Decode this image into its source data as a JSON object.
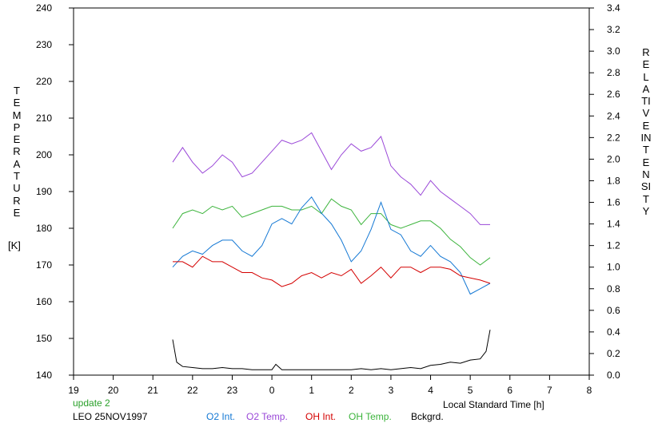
{
  "header": {
    "update_text": "update 2",
    "station_text": "LEO 25NOV1997"
  },
  "axes": {
    "left_label": "TEMPERATURE",
    "left_unit": "[K]",
    "right_label": "RELATIVE INTENSITY",
    "x_label": "Local Standard Time [h]"
  },
  "colors": {
    "o2_int": "#1478d4",
    "o2_temp": "#9a48d8",
    "oh_int": "#d40000",
    "oh_temp": "#3cb43c",
    "bckgrd": "#000000",
    "update": "#2aa02a"
  },
  "chart_data": {
    "type": "line",
    "title": "",
    "xlabel": "Local Standard Time [h]",
    "ylabel": "TEMPERATURE [K]",
    "ylabel_right": "RELATIVE INTENSITY",
    "xlim": [
      19,
      32
    ],
    "ylim": [
      140,
      240
    ],
    "ylim_right": [
      0.0,
      3.4
    ],
    "x_tick_labels": [
      "19",
      "20",
      "21",
      "22",
      "23",
      "0",
      "1",
      "2",
      "3",
      "4",
      "5",
      "6",
      "7",
      "8"
    ],
    "y_tick_labels": [
      "140",
      "150",
      "160",
      "170",
      "180",
      "190",
      "200",
      "210",
      "220",
      "230",
      "240"
    ],
    "y_right_tick_labels": [
      "0.0",
      "0.2",
      "0.4",
      "0.6",
      "0.8",
      "1.0",
      "1.2",
      "1.4",
      "1.6",
      "1.8",
      "2.0",
      "2.2",
      "2.4",
      "2.6",
      "2.8",
      "3.0",
      "3.2",
      "3.4"
    ],
    "grid": false,
    "legend_position": "bottom",
    "series": [
      {
        "name": "O2 Int.",
        "axis": "right",
        "x": [
          21.5,
          21.75,
          22.0,
          22.25,
          22.5,
          22.75,
          23.0,
          23.25,
          23.5,
          23.75,
          24.0,
          24.25,
          24.5,
          24.75,
          25.0,
          25.25,
          25.5,
          25.75,
          26.0,
          26.25,
          26.5,
          26.75,
          27.0,
          27.25,
          27.5,
          27.75,
          28.0,
          28.25,
          28.5,
          28.75,
          29.0,
          29.25,
          29.5
        ],
        "y": [
          1.0,
          1.1,
          1.15,
          1.12,
          1.2,
          1.25,
          1.25,
          1.15,
          1.1,
          1.2,
          1.4,
          1.45,
          1.4,
          1.55,
          1.65,
          1.5,
          1.4,
          1.25,
          1.05,
          1.15,
          1.35,
          1.6,
          1.35,
          1.3,
          1.15,
          1.1,
          1.2,
          1.1,
          1.05,
          0.95,
          0.75,
          0.8,
          0.85
        ]
      },
      {
        "name": "O2 Temp.",
        "axis": "left",
        "x": [
          21.5,
          21.75,
          22.0,
          22.25,
          22.5,
          22.75,
          23.0,
          23.25,
          23.5,
          23.75,
          24.0,
          24.25,
          24.5,
          24.75,
          25.0,
          25.25,
          25.5,
          25.75,
          26.0,
          26.25,
          26.5,
          26.75,
          27.0,
          27.25,
          27.5,
          27.75,
          28.0,
          28.25,
          28.5,
          28.75,
          29.0,
          29.25,
          29.5
        ],
        "y": [
          198,
          202,
          198,
          195,
          197,
          200,
          198,
          194,
          195,
          198,
          201,
          204,
          203,
          204,
          206,
          201,
          196,
          200,
          203,
          201,
          202,
          205,
          197,
          194,
          192,
          189,
          193,
          190,
          188,
          186,
          184,
          181,
          181
        ]
      },
      {
        "name": "OH Int.",
        "axis": "right",
        "x": [
          21.5,
          21.75,
          22.0,
          22.25,
          22.5,
          22.75,
          23.0,
          23.25,
          23.5,
          23.75,
          24.0,
          24.25,
          24.5,
          24.75,
          25.0,
          25.25,
          25.5,
          25.75,
          26.0,
          26.25,
          26.5,
          26.75,
          27.0,
          27.25,
          27.5,
          27.75,
          28.0,
          28.25,
          28.5,
          28.75,
          29.0,
          29.25,
          29.5
        ],
        "y": [
          1.05,
          1.05,
          1.0,
          1.1,
          1.05,
          1.05,
          1.0,
          0.95,
          0.95,
          0.9,
          0.88,
          0.82,
          0.85,
          0.92,
          0.95,
          0.9,
          0.95,
          0.92,
          0.98,
          0.85,
          0.92,
          1.0,
          0.9,
          1.0,
          1.0,
          0.95,
          1.0,
          1.0,
          0.98,
          0.92,
          0.9,
          0.88,
          0.85
        ]
      },
      {
        "name": "OH Temp.",
        "axis": "left",
        "x": [
          21.5,
          21.75,
          22.0,
          22.25,
          22.5,
          22.75,
          23.0,
          23.25,
          23.5,
          23.75,
          24.0,
          24.25,
          24.5,
          24.75,
          25.0,
          25.25,
          25.5,
          25.75,
          26.0,
          26.25,
          26.5,
          26.75,
          27.0,
          27.25,
          27.5,
          27.75,
          28.0,
          28.25,
          28.5,
          28.75,
          29.0,
          29.25,
          29.5
        ],
        "y": [
          180,
          184,
          185,
          184,
          186,
          185,
          186,
          183,
          184,
          185,
          186,
          186,
          185,
          185,
          186,
          184,
          188,
          186,
          185,
          181,
          184,
          184,
          181,
          180,
          181,
          182,
          182,
          180,
          177,
          175,
          172,
          170,
          172
        ]
      },
      {
        "name": "Bckgrd.",
        "axis": "right",
        "x": [
          21.5,
          21.6,
          21.75,
          22.0,
          22.25,
          22.5,
          22.75,
          23.0,
          23.25,
          23.5,
          23.75,
          24.0,
          24.1,
          24.25,
          24.5,
          24.75,
          25.0,
          25.25,
          25.5,
          25.75,
          26.0,
          26.25,
          26.5,
          26.75,
          27.0,
          27.25,
          27.5,
          27.75,
          28.0,
          28.25,
          28.5,
          28.75,
          29.0,
          29.25,
          29.4,
          29.5
        ],
        "y": [
          0.33,
          0.12,
          0.08,
          0.07,
          0.06,
          0.06,
          0.07,
          0.06,
          0.06,
          0.05,
          0.05,
          0.05,
          0.1,
          0.05,
          0.05,
          0.05,
          0.05,
          0.05,
          0.05,
          0.05,
          0.05,
          0.06,
          0.05,
          0.06,
          0.05,
          0.06,
          0.07,
          0.06,
          0.09,
          0.1,
          0.12,
          0.11,
          0.14,
          0.15,
          0.22,
          0.42
        ]
      }
    ]
  }
}
